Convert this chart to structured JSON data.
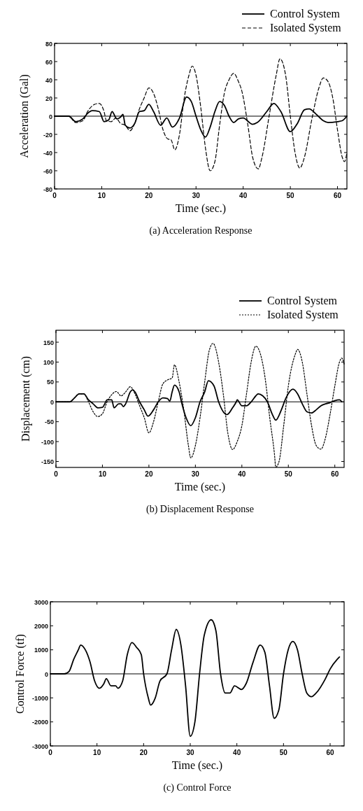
{
  "chart_data": [
    {
      "type": "line",
      "title": "(a) Acceleration Response",
      "xlabel": "Time (sec.)",
      "ylabel": "Acceleration (Gal)",
      "xlim": [
        0,
        62
      ],
      "xticks": [
        0,
        10,
        20,
        30,
        40,
        50,
        60
      ],
      "ylim": [
        -80,
        80
      ],
      "yticks": [
        -80,
        -60,
        -40,
        -20,
        0,
        20,
        40,
        60,
        80
      ],
      "legend": "top right",
      "grid": false,
      "ref_lines": [
        {
          "axis": "y",
          "value": 0,
          "color": "#000000"
        }
      ],
      "series": [
        {
          "name": "Control System",
          "color": "#000000",
          "line_style": "solid",
          "x": [
            0,
            3,
            4.5,
            6,
            7,
            8,
            9.5,
            10.5,
            11.5,
            12.2,
            13.2,
            14,
            14.5,
            15,
            16,
            17,
            18,
            19,
            20,
            21,
            22.5,
            23.8,
            25,
            26.5,
            28,
            29,
            30,
            31,
            32,
            33,
            34,
            35,
            36,
            37,
            38,
            39,
            40,
            42,
            43,
            45,
            46.5,
            48,
            50,
            51.5,
            53,
            54,
            55.5,
            57,
            58,
            60,
            61,
            62
          ],
          "values": [
            0,
            0,
            -6,
            -3,
            3,
            6,
            5,
            -6,
            -4,
            5,
            -3,
            -1,
            2,
            -10,
            -13,
            -8,
            5,
            6,
            13,
            5,
            -10,
            -2,
            -12,
            -2,
            21,
            16,
            0,
            -15,
            -23,
            -12,
            5,
            16,
            12,
            0,
            -7,
            -3,
            -2,
            -9,
            -7,
            5,
            14,
            5,
            -17,
            -8,
            7,
            8,
            2,
            -5,
            -7,
            -6,
            -5,
            0
          ]
        },
        {
          "name": "Isolated System",
          "color": "#000000",
          "line_style": "dashed",
          "x": [
            0,
            3,
            4.5,
            6,
            7,
            8.5,
            9.5,
            10.5,
            11,
            12,
            13,
            14,
            15,
            16,
            17,
            18,
            19,
            20,
            21,
            22,
            23,
            24,
            24.7,
            25.5,
            26.5,
            27.5,
            28.5,
            29.2,
            30,
            31,
            32,
            33,
            34,
            35,
            36,
            37,
            38,
            39,
            39.7,
            41,
            42,
            43.2,
            44,
            45.5,
            47,
            47.8,
            49,
            50,
            51,
            52,
            53,
            54.5,
            56,
            57,
            58,
            59,
            60,
            61,
            61.5,
            62
          ],
          "values": [
            0,
            0,
            -7,
            -5,
            5,
            13,
            14,
            5,
            -5,
            -6,
            -2,
            -8,
            -10,
            -16,
            -8,
            8,
            20,
            31,
            25,
            8,
            -15,
            -25,
            -26,
            -37,
            -20,
            20,
            45,
            55,
            45,
            10,
            -35,
            -60,
            -50,
            -10,
            25,
            40,
            47,
            38,
            28,
            -10,
            -45,
            -58,
            -45,
            0,
            45,
            63,
            45,
            0,
            -40,
            -57,
            -45,
            -5,
            30,
            42,
            38,
            20,
            -15,
            -45,
            -50,
            -40
          ]
        }
      ]
    },
    {
      "type": "line",
      "title": "(b) Displacement Response",
      "xlabel": "Time (sec.)",
      "ylabel": "Displacement (cm)",
      "xlim": [
        0,
        62
      ],
      "xticks": [
        0,
        10,
        20,
        30,
        40,
        50,
        60
      ],
      "ylim": [
        -165,
        180
      ],
      "yticks": [
        -150,
        -100,
        -50,
        0,
        50,
        100,
        150
      ],
      "legend": "top right",
      "grid": false,
      "ref_lines": [
        {
          "axis": "y",
          "value": 0,
          "color": "#000000"
        }
      ],
      "series": [
        {
          "name": "Control System",
          "color": "#000000",
          "line_style": "solid",
          "x": [
            0,
            3,
            4,
            5,
            6,
            7,
            8,
            9,
            10,
            10.5,
            11,
            12,
            12.5,
            13.5,
            14,
            14.5,
            15,
            16,
            16.5,
            17,
            18,
            19,
            19.8,
            21,
            22,
            23,
            24,
            24.5,
            25,
            25.5,
            26.5,
            27,
            28,
            29,
            30,
            31,
            32,
            32.8,
            34,
            35,
            36,
            36.8,
            38,
            38.8,
            39,
            40,
            41,
            42,
            43,
            43.5,
            44.5,
            45.5,
            46.5,
            47.3,
            48.5,
            49.5,
            51,
            52,
            53,
            54,
            55,
            56,
            57,
            58,
            59,
            60,
            61,
            61.5
          ],
          "values": [
            0,
            0,
            10,
            20,
            20,
            5,
            -5,
            -15,
            -14,
            -5,
            5,
            5,
            -15,
            -5,
            -5,
            -12,
            -5,
            25,
            30,
            25,
            0,
            -20,
            -36,
            -20,
            0,
            10,
            8,
            2,
            25,
            42,
            25,
            0,
            -40,
            -60,
            -40,
            0,
            25,
            53,
            40,
            0,
            -25,
            -32,
            -15,
            0,
            5,
            -10,
            -10,
            0,
            15,
            20,
            15,
            0,
            -30,
            -46,
            -20,
            10,
            32,
            20,
            -5,
            -25,
            -28,
            -20,
            -10,
            -5,
            -2,
            3,
            5,
            0
          ]
        },
        {
          "name": "Isolated System",
          "color": "#000000",
          "line_style": "dotted",
          "x": [
            0,
            3,
            4,
            5,
            6,
            7,
            8,
            9,
            10,
            11,
            12,
            13,
            14,
            15,
            16,
            17,
            18,
            19,
            20,
            21,
            22,
            23,
            24,
            25,
            25.5,
            26.5,
            27.5,
            28.5,
            29,
            30,
            31,
            32,
            33,
            33.8,
            35,
            36,
            37,
            38,
            39,
            40,
            41,
            42,
            43,
            44,
            45,
            46,
            47,
            47.3,
            48,
            49,
            50,
            51.5,
            52,
            53,
            54,
            55,
            56,
            57,
            58,
            59,
            60,
            61,
            61.5,
            62
          ],
          "values": [
            0,
            0,
            10,
            20,
            20,
            0,
            -25,
            -37,
            -30,
            0,
            18,
            26,
            15,
            25,
            38,
            20,
            -10,
            -40,
            -78,
            -50,
            0,
            45,
            55,
            60,
            93,
            50,
            -20,
            -110,
            -141,
            -110,
            -40,
            50,
            130,
            147,
            100,
            20,
            -80,
            -120,
            -100,
            -60,
            20,
            100,
            140,
            120,
            60,
            -40,
            -130,
            -164,
            -150,
            -60,
            40,
            120,
            132,
            100,
            20,
            -60,
            -110,
            -119,
            -90,
            -30,
            40,
            100,
            110,
            95
          ]
        }
      ]
    },
    {
      "type": "line",
      "title": "(c) Control Force",
      "xlabel": "Time (sec.)",
      "ylabel": "Control Force (tf)",
      "xlim": [
        0,
        63
      ],
      "xticks": [
        0,
        10,
        20,
        30,
        40,
        50,
        60
      ],
      "ylim": [
        -3000,
        3000
      ],
      "yticks": [
        -3000,
        -2000,
        -1000,
        0,
        1000,
        2000,
        3000
      ],
      "grid": false,
      "ref_lines": [
        {
          "axis": "y",
          "value": 0,
          "color": "#000000"
        }
      ],
      "series": [
        {
          "color": "#000000",
          "line_style": "solid",
          "x": [
            0,
            3,
            4,
            5,
            6,
            6.5,
            7.5,
            8.5,
            9.5,
            10.5,
            11.5,
            12,
            13,
            14,
            14.5,
            15.5,
            16.5,
            17.5,
            18.5,
            19.5,
            20,
            21,
            21.5,
            22.5,
            23.5,
            25,
            26,
            27,
            28,
            29,
            30,
            31,
            32,
            33,
            34.5,
            35.5,
            36.5,
            37.5,
            38.5,
            39.5,
            41,
            42,
            43.5,
            45,
            46,
            47,
            48,
            49,
            50,
            51,
            52,
            53,
            54,
            55,
            56,
            57,
            59,
            60,
            61.5,
            62
          ],
          "values": [
            0,
            0,
            100,
            600,
            1000,
            1200,
            1000,
            500,
            -300,
            -600,
            -400,
            -200,
            -500,
            -500,
            -600,
            -300,
            800,
            1300,
            1100,
            800,
            0,
            -1000,
            -1300,
            -1000,
            -300,
            0,
            1000,
            1850,
            1200,
            -500,
            -2600,
            -2000,
            0,
            1600,
            2250,
            1800,
            0,
            -800,
            -800,
            -500,
            -650,
            -400,
            500,
            1200,
            900,
            -500,
            -1850,
            -1500,
            0,
            1000,
            1350,
            1000,
            0,
            -800,
            -950,
            -800,
            -200,
            200,
            600,
            700
          ]
        }
      ]
    }
  ]
}
